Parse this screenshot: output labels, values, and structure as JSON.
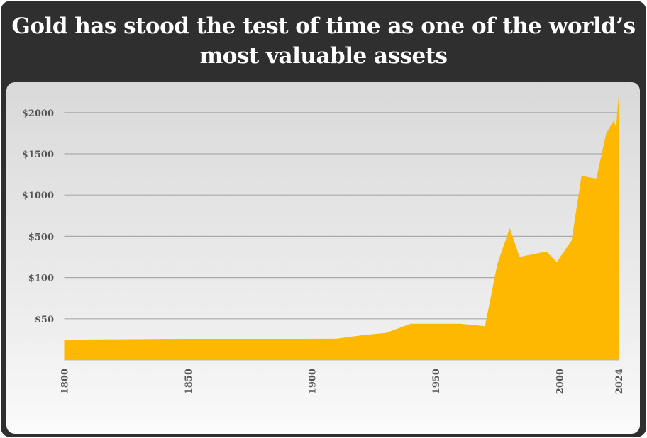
{
  "chart_data": {
    "type": "area",
    "title": "Gold has stood the test of time as one of the world’s most valuable assets",
    "xlabel": "",
    "ylabel": "",
    "x_ticks": [
      "1800",
      "1850",
      "1900",
      "1950",
      "2000",
      "2024"
    ],
    "y_ticks": [
      "$50",
      "$100",
      "$500",
      "$1000",
      "$1500",
      "$2000"
    ],
    "y_scale": "non-linear (equally spaced ticks at 0, 50, 100, 500, 1000, 1500, 2000)",
    "xlim": [
      1800,
      2024
    ],
    "grid": true,
    "color": "#FFB800",
    "x": [
      1800,
      1850,
      1910,
      1920,
      1930,
      1940,
      1949,
      1960,
      1970,
      1975,
      1980,
      1984,
      1992,
      1995,
      1999,
      2005,
      2009,
      2015,
      2019,
      2022,
      2023,
      2024
    ],
    "y": [
      24,
      25,
      26,
      30,
      33,
      44,
      44,
      44,
      41,
      230,
      600,
      300,
      340,
      350,
      250,
      460,
      1230,
      1200,
      1750,
      1900,
      1820,
      2200
    ]
  }
}
